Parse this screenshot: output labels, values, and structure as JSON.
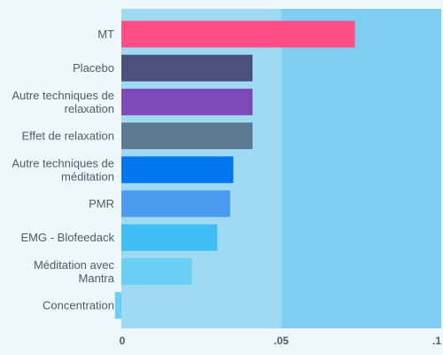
{
  "chart_data": {
    "type": "bar",
    "orientation": "horizontal",
    "categories": [
      [
        "MT"
      ],
      [
        "Placebo"
      ],
      [
        "Autre techniques de",
        "relaxation"
      ],
      [
        "Effet de relaxation"
      ],
      [
        "Autre techniques de",
        "méditation"
      ],
      [
        "PMR"
      ],
      [
        "EMG - Blofeedack"
      ],
      [
        "Méditation avec",
        "Mantra"
      ],
      [
        "Concentration"
      ]
    ],
    "values": [
      0.073,
      0.041,
      0.041,
      0.041,
      0.035,
      0.034,
      0.03,
      0.022,
      -0.002
    ],
    "bar_colors": [
      "#ff4d85",
      "#4a5080",
      "#7e49b8",
      "#5c7b92",
      "#0077ee",
      "#4a9af0",
      "#3fbef5",
      "#6acff5",
      "#6acff5"
    ],
    "xlim": [
      0,
      0.1
    ],
    "x_ticks": [
      0,
      0.05,
      0.1
    ],
    "x_tick_labels": [
      "0",
      ".05",
      ".1"
    ],
    "band_colors": [
      "#9fdaf2",
      "#7fcef2"
    ],
    "grid": false,
    "legend": "none"
  }
}
